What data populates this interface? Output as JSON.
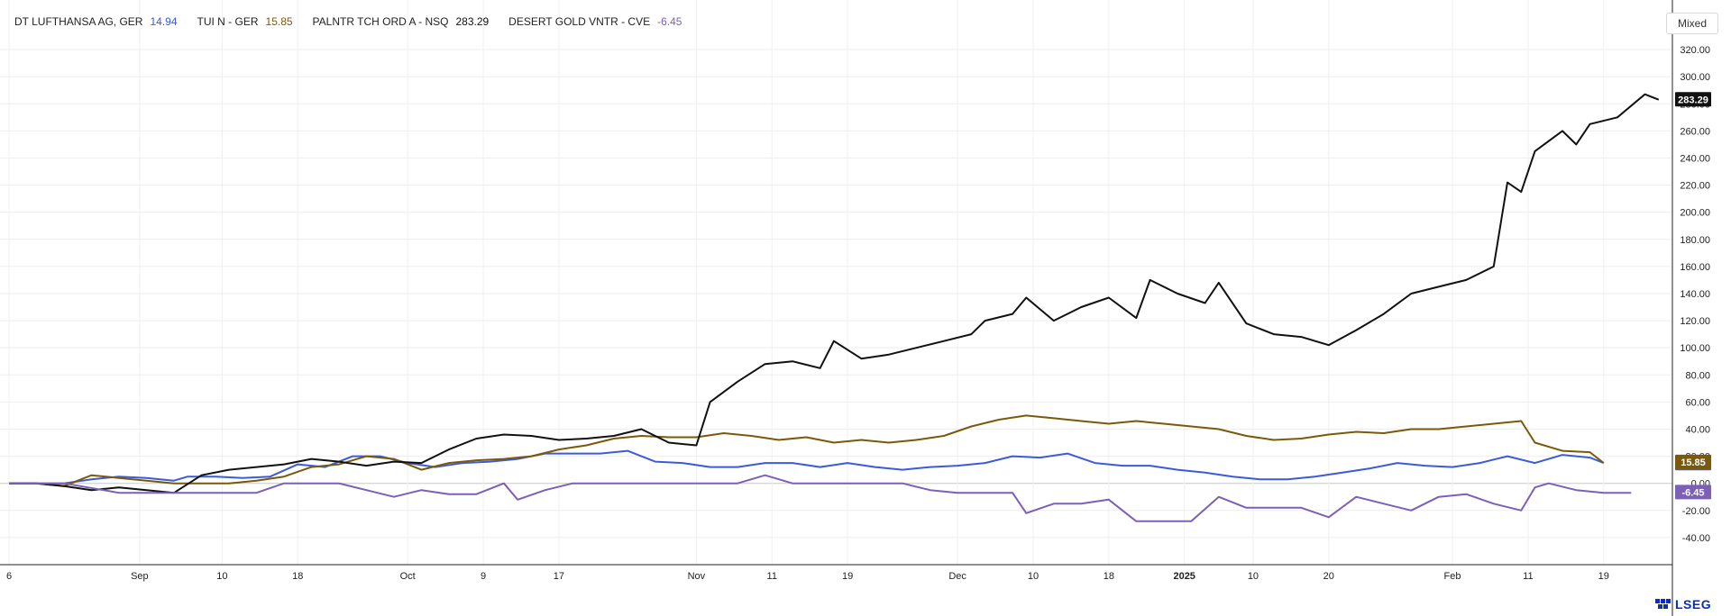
{
  "chart_data": {
    "type": "line",
    "scale_mode": "Mixed",
    "ylim": [
      -60,
      330
    ],
    "yticks": [
      320,
      300,
      280,
      260,
      240,
      220,
      200,
      180,
      160,
      140,
      120,
      100,
      80,
      60,
      40,
      20,
      0,
      -20,
      -40
    ],
    "ytick_labels": [
      "320.00",
      "300.00",
      "280.00",
      "260.00",
      "240.00",
      "220.00",
      "200.00",
      "180.00",
      "160.00",
      "140.00",
      "120.00",
      "100.00",
      "80.00",
      "60.00",
      "40.00",
      "20.00",
      "0.00",
      "-20.00",
      "-40.00"
    ],
    "xticks": [
      {
        "label": "6",
        "t": 0
      },
      {
        "label": "Sep",
        "t": 19
      },
      {
        "label": "10",
        "t": 31
      },
      {
        "label": "18",
        "t": 42
      },
      {
        "label": "Oct",
        "t": 58
      },
      {
        "label": "9",
        "t": 69
      },
      {
        "label": "17",
        "t": 80
      },
      {
        "label": "Nov",
        "t": 100
      },
      {
        "label": "11",
        "t": 111
      },
      {
        "label": "19",
        "t": 122
      },
      {
        "label": "Dec",
        "t": 138
      },
      {
        "label": "10",
        "t": 149
      },
      {
        "label": "18",
        "t": 160
      },
      {
        "label": "2025",
        "t": 171,
        "bold": true
      },
      {
        "label": "10",
        "t": 181
      },
      {
        "label": "20",
        "t": 192
      },
      {
        "label": "Feb",
        "t": 210
      },
      {
        "label": "11",
        "t": 221
      },
      {
        "label": "19",
        "t": 232
      }
    ],
    "series": [
      {
        "name": "DT LUFTHANSA AG, GER",
        "last_label": "14.94",
        "last": 14.94,
        "color": "#3b5bdb",
        "points": [
          [
            0,
            0
          ],
          [
            4,
            0
          ],
          [
            8,
            0
          ],
          [
            12,
            3
          ],
          [
            16,
            5
          ],
          [
            20,
            4
          ],
          [
            24,
            2
          ],
          [
            26,
            5
          ],
          [
            30,
            5
          ],
          [
            34,
            4
          ],
          [
            38,
            5
          ],
          [
            42,
            14
          ],
          [
            46,
            12
          ],
          [
            50,
            20
          ],
          [
            54,
            20
          ],
          [
            58,
            15
          ],
          [
            62,
            12
          ],
          [
            66,
            15
          ],
          [
            70,
            16
          ],
          [
            74,
            18
          ],
          [
            78,
            22
          ],
          [
            82,
            22
          ],
          [
            86,
            22
          ],
          [
            90,
            24
          ],
          [
            94,
            16
          ],
          [
            98,
            15
          ],
          [
            102,
            12
          ],
          [
            106,
            12
          ],
          [
            110,
            15
          ],
          [
            114,
            15
          ],
          [
            118,
            12
          ],
          [
            122,
            15
          ],
          [
            126,
            12
          ],
          [
            130,
            10
          ],
          [
            134,
            12
          ],
          [
            138,
            13
          ],
          [
            142,
            15
          ],
          [
            146,
            20
          ],
          [
            150,
            19
          ],
          [
            154,
            22
          ],
          [
            158,
            15
          ],
          [
            162,
            13
          ],
          [
            166,
            13
          ],
          [
            170,
            10
          ],
          [
            174,
            8
          ],
          [
            178,
            5
          ],
          [
            182,
            3
          ],
          [
            186,
            3
          ],
          [
            190,
            5
          ],
          [
            194,
            8
          ],
          [
            198,
            11
          ],
          [
            202,
            15
          ],
          [
            206,
            13
          ],
          [
            210,
            12
          ],
          [
            214,
            15
          ],
          [
            218,
            20
          ],
          [
            222,
            15
          ],
          [
            226,
            21
          ],
          [
            230,
            19
          ],
          [
            232,
            15
          ]
        ]
      },
      {
        "name": "TUI N - GER",
        "last_label": "15.85",
        "last": 15.85,
        "color": "#7a5a0a",
        "points": [
          [
            0,
            0
          ],
          [
            4,
            0
          ],
          [
            8,
            -2
          ],
          [
            12,
            6
          ],
          [
            16,
            4
          ],
          [
            20,
            2
          ],
          [
            24,
            0
          ],
          [
            28,
            0
          ],
          [
            32,
            0
          ],
          [
            36,
            2
          ],
          [
            40,
            5
          ],
          [
            44,
            12
          ],
          [
            48,
            14
          ],
          [
            52,
            20
          ],
          [
            56,
            18
          ],
          [
            60,
            10
          ],
          [
            64,
            15
          ],
          [
            68,
            17
          ],
          [
            72,
            18
          ],
          [
            76,
            20
          ],
          [
            80,
            25
          ],
          [
            84,
            28
          ],
          [
            88,
            33
          ],
          [
            92,
            35
          ],
          [
            96,
            34
          ],
          [
            100,
            34
          ],
          [
            104,
            37
          ],
          [
            108,
            35
          ],
          [
            112,
            32
          ],
          [
            116,
            34
          ],
          [
            120,
            30
          ],
          [
            124,
            32
          ],
          [
            128,
            30
          ],
          [
            132,
            32
          ],
          [
            136,
            35
          ],
          [
            140,
            42
          ],
          [
            144,
            47
          ],
          [
            148,
            50
          ],
          [
            152,
            48
          ],
          [
            156,
            46
          ],
          [
            160,
            44
          ],
          [
            164,
            46
          ],
          [
            168,
            44
          ],
          [
            172,
            42
          ],
          [
            176,
            40
          ],
          [
            180,
            35
          ],
          [
            184,
            32
          ],
          [
            188,
            33
          ],
          [
            192,
            36
          ],
          [
            196,
            38
          ],
          [
            200,
            37
          ],
          [
            204,
            40
          ],
          [
            208,
            40
          ],
          [
            212,
            42
          ],
          [
            216,
            44
          ],
          [
            220,
            46
          ],
          [
            222,
            30
          ],
          [
            226,
            24
          ],
          [
            230,
            23
          ],
          [
            232,
            15
          ]
        ]
      },
      {
        "name": "PALNTR TCH ORD A - NSQ",
        "last_label": "283.29",
        "last": 283.29,
        "color": "#111111",
        "points": [
          [
            0,
            0
          ],
          [
            4,
            0
          ],
          [
            8,
            -2
          ],
          [
            12,
            -5
          ],
          [
            16,
            -3
          ],
          [
            20,
            -5
          ],
          [
            24,
            -7
          ],
          [
            28,
            6
          ],
          [
            32,
            10
          ],
          [
            36,
            12
          ],
          [
            40,
            14
          ],
          [
            44,
            18
          ],
          [
            48,
            16
          ],
          [
            52,
            13
          ],
          [
            56,
            16
          ],
          [
            60,
            15
          ],
          [
            64,
            25
          ],
          [
            68,
            33
          ],
          [
            72,
            36
          ],
          [
            76,
            35
          ],
          [
            80,
            32
          ],
          [
            84,
            33
          ],
          [
            88,
            35
          ],
          [
            92,
            40
          ],
          [
            96,
            30
          ],
          [
            100,
            28
          ],
          [
            102,
            60
          ],
          [
            106,
            75
          ],
          [
            110,
            88
          ],
          [
            114,
            90
          ],
          [
            118,
            85
          ],
          [
            120,
            105
          ],
          [
            124,
            92
          ],
          [
            128,
            95
          ],
          [
            132,
            100
          ],
          [
            136,
            105
          ],
          [
            140,
            110
          ],
          [
            142,
            120
          ],
          [
            146,
            125
          ],
          [
            148,
            137
          ],
          [
            152,
            120
          ],
          [
            156,
            130
          ],
          [
            160,
            137
          ],
          [
            164,
            122
          ],
          [
            166,
            150
          ],
          [
            170,
            140
          ],
          [
            174,
            133
          ],
          [
            176,
            148
          ],
          [
            180,
            118
          ],
          [
            184,
            110
          ],
          [
            188,
            108
          ],
          [
            192,
            102
          ],
          [
            196,
            113
          ],
          [
            200,
            125
          ],
          [
            204,
            140
          ],
          [
            208,
            145
          ],
          [
            212,
            150
          ],
          [
            216,
            160
          ],
          [
            218,
            222
          ],
          [
            220,
            215
          ],
          [
            222,
            245
          ],
          [
            226,
            260
          ],
          [
            228,
            250
          ],
          [
            230,
            265
          ],
          [
            234,
            270
          ],
          [
            238,
            287
          ],
          [
            240,
            283
          ]
        ]
      },
      {
        "name": "DESERT GOLD VNTR - CVE",
        "last_label": "-6.45",
        "last": -6.45,
        "color": "#7c60b8",
        "points": [
          [
            0,
            0
          ],
          [
            8,
            0
          ],
          [
            16,
            -7
          ],
          [
            24,
            -7
          ],
          [
            32,
            -7
          ],
          [
            36,
            -7
          ],
          [
            40,
            0
          ],
          [
            44,
            0
          ],
          [
            48,
            0
          ],
          [
            52,
            -5
          ],
          [
            56,
            -10
          ],
          [
            60,
            -5
          ],
          [
            64,
            -8
          ],
          [
            68,
            -8
          ],
          [
            72,
            0
          ],
          [
            74,
            -12
          ],
          [
            78,
            -5
          ],
          [
            82,
            0
          ],
          [
            86,
            0
          ],
          [
            90,
            0
          ],
          [
            94,
            0
          ],
          [
            98,
            0
          ],
          [
            102,
            0
          ],
          [
            106,
            0
          ],
          [
            110,
            6
          ],
          [
            114,
            0
          ],
          [
            118,
            0
          ],
          [
            122,
            0
          ],
          [
            126,
            0
          ],
          [
            130,
            0
          ],
          [
            134,
            -5
          ],
          [
            138,
            -7
          ],
          [
            142,
            -7
          ],
          [
            146,
            -7
          ],
          [
            148,
            -22
          ],
          [
            152,
            -15
          ],
          [
            156,
            -15
          ],
          [
            160,
            -12
          ],
          [
            164,
            -28
          ],
          [
            168,
            -28
          ],
          [
            172,
            -28
          ],
          [
            176,
            -10
          ],
          [
            180,
            -18
          ],
          [
            184,
            -18
          ],
          [
            188,
            -18
          ],
          [
            192,
            -25
          ],
          [
            196,
            -10
          ],
          [
            200,
            -15
          ],
          [
            204,
            -20
          ],
          [
            208,
            -10
          ],
          [
            212,
            -8
          ],
          [
            216,
            -15
          ],
          [
            220,
            -20
          ],
          [
            222,
            -3
          ],
          [
            224,
            0
          ],
          [
            228,
            -5
          ],
          [
            232,
            -7
          ],
          [
            236,
            -7
          ]
        ]
      }
    ],
    "xmax": 242
  },
  "scale_button": {
    "label": "Mixed"
  },
  "logo": {
    "text": "LSEG"
  }
}
